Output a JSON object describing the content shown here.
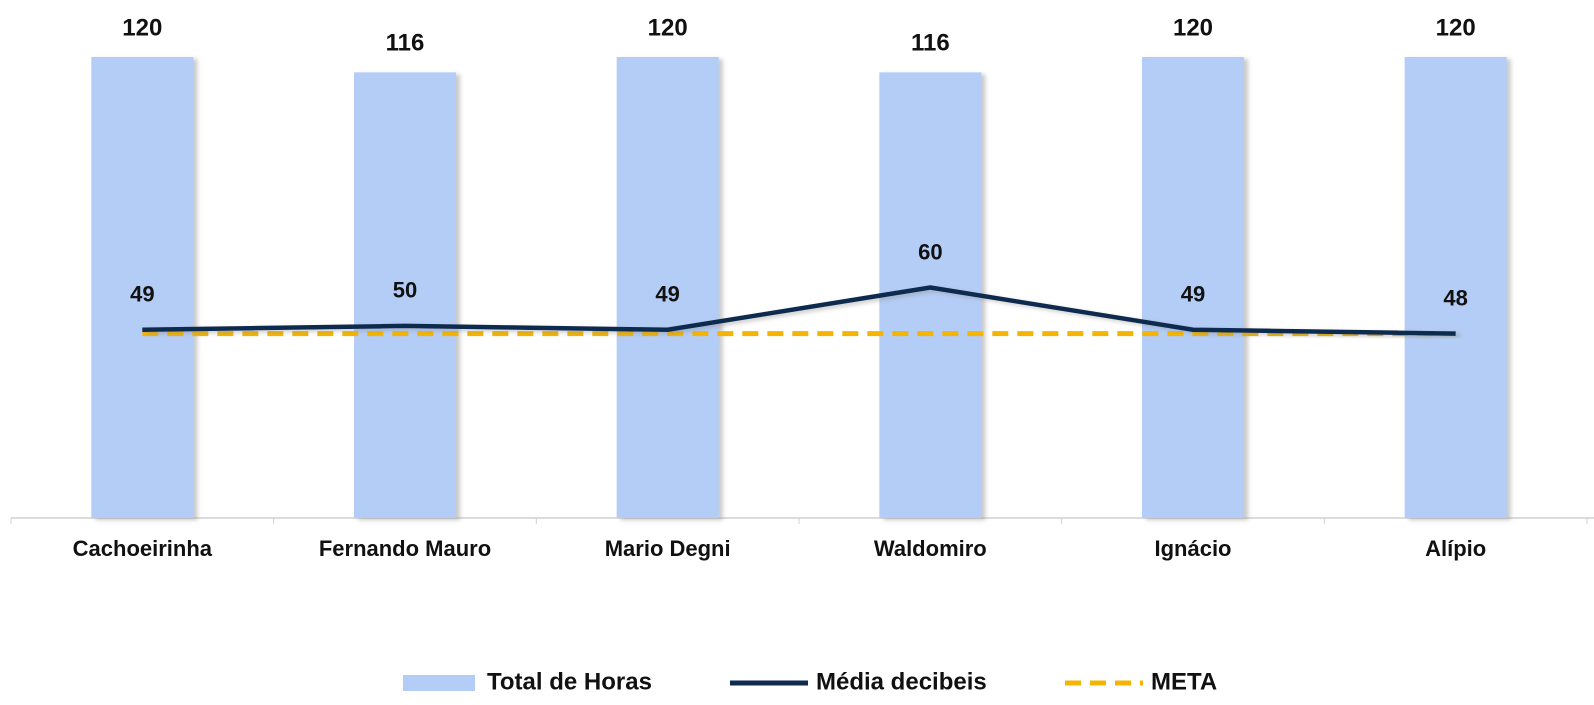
{
  "chart_data": {
    "type": "bar",
    "categories": [
      "Cachoeirinha",
      "Fernando Mauro",
      "Mario Degni",
      "Waldomiro",
      "Ignácio",
      "Alípio"
    ],
    "series": [
      {
        "name": "Total de Horas",
        "type": "bar",
        "color": "#b4cdf6",
        "values": [
          120,
          116,
          120,
          116,
          120,
          120
        ]
      },
      {
        "name": "Média decibeis",
        "type": "line",
        "color": "#0e2a4f",
        "values": [
          49,
          50,
          49,
          60,
          49,
          48
        ]
      },
      {
        "name": "META",
        "type": "line",
        "dashed": true,
        "color": "#f4b400",
        "values": [
          48,
          48,
          48,
          48,
          48,
          48
        ]
      }
    ],
    "data_labels": [
      "Total de Horas",
      "Média decibeis"
    ],
    "ylim": [
      0,
      120
    ],
    "legend": "bottom"
  }
}
